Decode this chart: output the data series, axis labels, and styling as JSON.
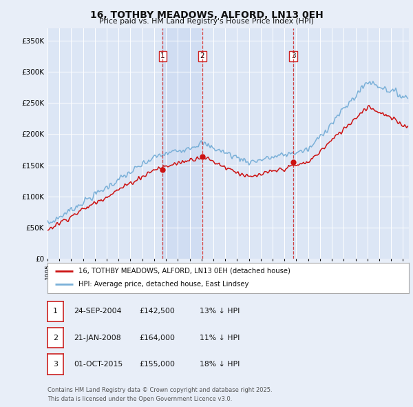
{
  "title": "16, TOTHBY MEADOWS, ALFORD, LN13 0EH",
  "subtitle": "Price paid vs. HM Land Registry's House Price Index (HPI)",
  "ylabel_ticks": [
    "£0",
    "£50K",
    "£100K",
    "£150K",
    "£200K",
    "£250K",
    "£300K",
    "£350K"
  ],
  "ytick_values": [
    0,
    50000,
    100000,
    150000,
    200000,
    250000,
    300000,
    350000
  ],
  "ylim": [
    0,
    370000
  ],
  "xlim_start": 1995.0,
  "xlim_end": 2025.5,
  "bg_color": "#e8eef8",
  "plot_bg_color": "#dce6f5",
  "grid_color": "#ffffff",
  "hpi_color": "#7ab0d8",
  "price_color": "#cc1111",
  "vline_color": "#cc2222",
  "shade_color": "#c8d8f0",
  "transactions": [
    {
      "date_num": 2004.73,
      "price": 142500,
      "label": "1"
    },
    {
      "date_num": 2008.05,
      "price": 164000,
      "label": "2"
    },
    {
      "date_num": 2015.75,
      "price": 155000,
      "label": "3"
    }
  ],
  "legend_price_label": "16, TOTHBY MEADOWS, ALFORD, LN13 0EH (detached house)",
  "legend_hpi_label": "HPI: Average price, detached house, East Lindsey",
  "footer_line1": "Contains HM Land Registry data © Crown copyright and database right 2025.",
  "footer_line2": "This data is licensed under the Open Government Licence v3.0.",
  "table_rows": [
    {
      "num": "1",
      "date": "24-SEP-2004",
      "price": "£142,500",
      "pct": "13% ↓ HPI"
    },
    {
      "num": "2",
      "date": "21-JAN-2008",
      "price": "£164,000",
      "pct": "11% ↓ HPI"
    },
    {
      "num": "3",
      "date": "01-OCT-2015",
      "price": "£155,000",
      "pct": "18% ↓ HPI"
    }
  ]
}
